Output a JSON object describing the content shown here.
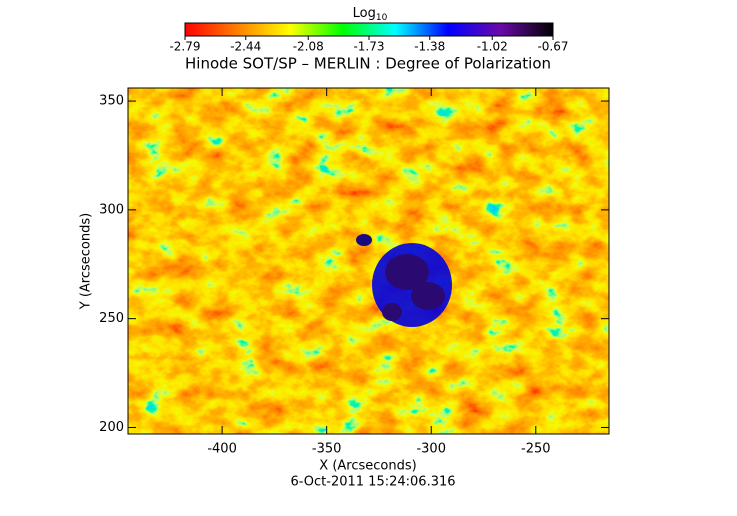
{
  "chart_data": {
    "type": "heatmap",
    "title": "Hinode SOT/SP – MERLIN : Degree of Polarization",
    "x_label": "X (Arcseconds)",
    "y_label": "Y (Arcseconds)",
    "footer": "6-Oct-2011 15:24:06.316",
    "xlim": [
      -445,
      -215
    ],
    "xticks": [
      -400,
      -350,
      -300,
      -250
    ],
    "ylim": [
      197,
      356
    ],
    "yticks": [
      200,
      250,
      300,
      350
    ],
    "colorbar": {
      "label": "Log",
      "label_subscript": "10",
      "lim": [
        -2.79,
        -0.67
      ],
      "ticks": [
        -2.79,
        -2.44,
        -2.08,
        -1.73,
        -1.38,
        -1.02,
        -0.67
      ],
      "colormap": [
        "#ff0000",
        "#ff8000",
        "#ffff00",
        "#00ff00",
        "#00ffff",
        "#0000ff",
        "#6a0aa8",
        "#000000"
      ]
    }
  }
}
